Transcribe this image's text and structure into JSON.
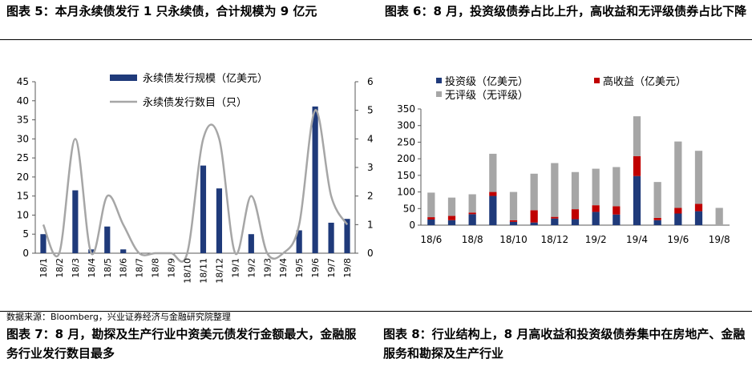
{
  "captions": {
    "fig5": "图表 5：本月永续债发行 1 只永续债，合计规模为 9 亿元",
    "fig6": "图表 6：8 月，投资级债券占比上升，高收益和无评级债券占比下降",
    "fig7": "图表 7：8 月，勘探及生产行业中资美元债发行金额最大，金融服务行业发行数目最多",
    "fig8": "图表 8：行业结构上，8 月高收益和投资级债券集中在房地产、金融服务和勘探及生产行业",
    "source": "数据来源：Bloomberg，兴业证券经济与金融研究院整理"
  },
  "colors": {
    "navy": "#1f3a7a",
    "gray": "#a6a6a6",
    "red": "#c00000",
    "axis": "#595959"
  },
  "chart_data": [
    {
      "type": "bar",
      "categories": [
        "18/1",
        "18/2",
        "18/3",
        "18/4",
        "18/5",
        "18/6",
        "18/7",
        "18/8",
        "18/9",
        "18/10",
        "18/11",
        "18/12",
        "19/1",
        "19/2",
        "19/3",
        "19/4",
        "19/5",
        "19/6",
        "19/7",
        "19/8"
      ],
      "series": [
        {
          "name": "永续债发行规模（亿美元）",
          "type": "bar",
          "axis": "left",
          "values": [
            5,
            0,
            16.5,
            1,
            7,
            1,
            0,
            0,
            0,
            0,
            23,
            17,
            0,
            5,
            0,
            0,
            6,
            38.5,
            8,
            9
          ]
        },
        {
          "name": "永续债发行数目（只）",
          "type": "line",
          "axis": "right",
          "values": [
            1,
            0,
            4,
            0,
            2,
            1,
            0,
            0,
            0,
            0,
            4,
            4,
            0,
            2,
            0,
            0,
            1,
            5,
            2,
            1
          ]
        }
      ],
      "ylim_left": [
        0,
        45
      ],
      "yticks_left": [
        "0",
        "5",
        "10",
        "15",
        "20",
        "25",
        "30",
        "35",
        "40",
        "45"
      ],
      "ylim_right": [
        0,
        6
      ],
      "yticks_right": [
        "0",
        "1",
        "2",
        "3",
        "4",
        "5",
        "6"
      ],
      "legend": "top-center",
      "grid": false
    },
    {
      "type": "bar",
      "stacked": true,
      "categories": [
        "18/6",
        "18/7",
        "18/8",
        "18/9",
        "18/10",
        "18/11",
        "18/12",
        "19/1",
        "19/2",
        "19/3",
        "19/4",
        "19/5",
        "19/6",
        "19/7",
        "19/8"
      ],
      "x_tick_labels": [
        "18/6",
        "18/8",
        "18/10",
        "18/12",
        "19/2",
        "19/4",
        "19/6",
        "19/8"
      ],
      "series": [
        {
          "name": "投资级（亿美元）",
          "values": [
            17,
            15,
            33,
            88,
            10,
            8,
            20,
            18,
            40,
            32,
            148,
            15,
            35,
            42,
            0
          ]
        },
        {
          "name": "高收益（亿美元）",
          "values": [
            7,
            13,
            5,
            12,
            5,
            37,
            5,
            30,
            20,
            25,
            60,
            7,
            17,
            22,
            0
          ]
        },
        {
          "name": "无评级（无评级）",
          "values": [
            74,
            55,
            55,
            115,
            85,
            110,
            162,
            112,
            110,
            118,
            120,
            108,
            200,
            160,
            52
          ]
        }
      ],
      "ylim": [
        0,
        350
      ],
      "yticks": [
        "0",
        "50",
        "100",
        "150",
        "200",
        "250",
        "300",
        "350"
      ],
      "legend": "top",
      "grid": false
    }
  ]
}
